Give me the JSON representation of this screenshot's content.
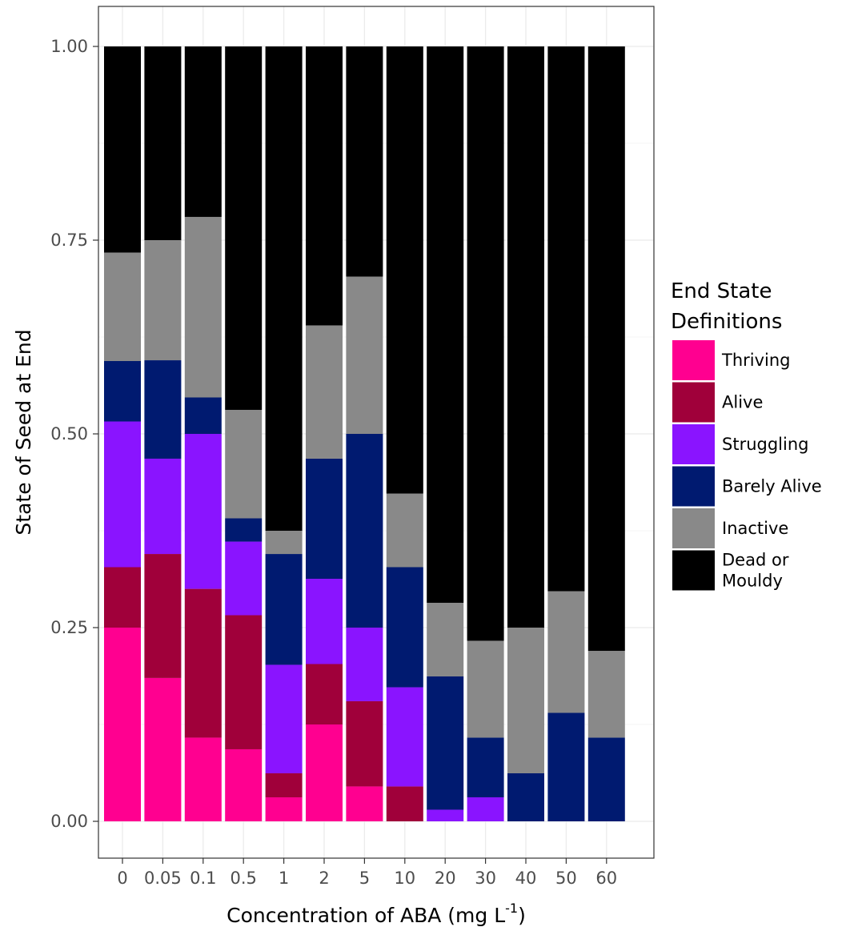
{
  "chart_data": {
    "type": "bar",
    "stacked": true,
    "xlabel": "Concentration of ABA (mg L",
    "xlabel_superscript": "-1",
    "xlabel_suffix": ")",
    "ylabel": "State of Seed at End",
    "ylim": [
      0,
      1
    ],
    "yticks": [
      "0.00",
      "0.25",
      "0.50",
      "0.75",
      "1.00"
    ],
    "grid": true,
    "legend_position": "right",
    "legend_title": [
      "End State",
      "Definitions"
    ],
    "categories": [
      "0",
      "0.05",
      "0.1",
      "0.5",
      "1",
      "2",
      "5",
      "10",
      "20",
      "30",
      "40",
      "50",
      "60"
    ],
    "series": [
      {
        "name": "Thriving",
        "color": "#ff0090",
        "values": [
          0.25,
          0.185,
          0.108,
          0.093,
          0.031,
          0.125,
          0.045,
          0,
          0,
          0,
          0,
          0,
          0
        ]
      },
      {
        "name": "Alive",
        "color": "#a0003a",
        "values": [
          0.078,
          0.16,
          0.192,
          0.173,
          0.031,
          0.078,
          0.11,
          0.045,
          0,
          0,
          0,
          0,
          0
        ]
      },
      {
        "name": "Struggling",
        "color": "#8a14ff",
        "values": [
          0.188,
          0.123,
          0.2,
          0.095,
          0.14,
          0.11,
          0.095,
          0.128,
          0.015,
          0.031,
          0,
          0,
          0
        ]
      },
      {
        "name": "Barely Alive",
        "color": "#001a70",
        "values": [
          0.078,
          0.127,
          0.047,
          0.03,
          0.143,
          0.155,
          0.25,
          0.155,
          0.172,
          0.077,
          0.062,
          0.14,
          0.108
        ]
      },
      {
        "name": "Inactive",
        "color": "#898989",
        "values": [
          0.14,
          0.155,
          0.233,
          0.14,
          0.03,
          0.172,
          0.203,
          0.095,
          0.095,
          0.125,
          0.188,
          0.157,
          0.112
        ]
      },
      {
        "name": "Dead or\nMouldy",
        "color": "#000000",
        "values": [
          0.266,
          0.25,
          0.22,
          0.469,
          0.625,
          0.36,
          0.297,
          0.577,
          0.718,
          0.767,
          0.75,
          0.703,
          0.78
        ]
      }
    ]
  }
}
